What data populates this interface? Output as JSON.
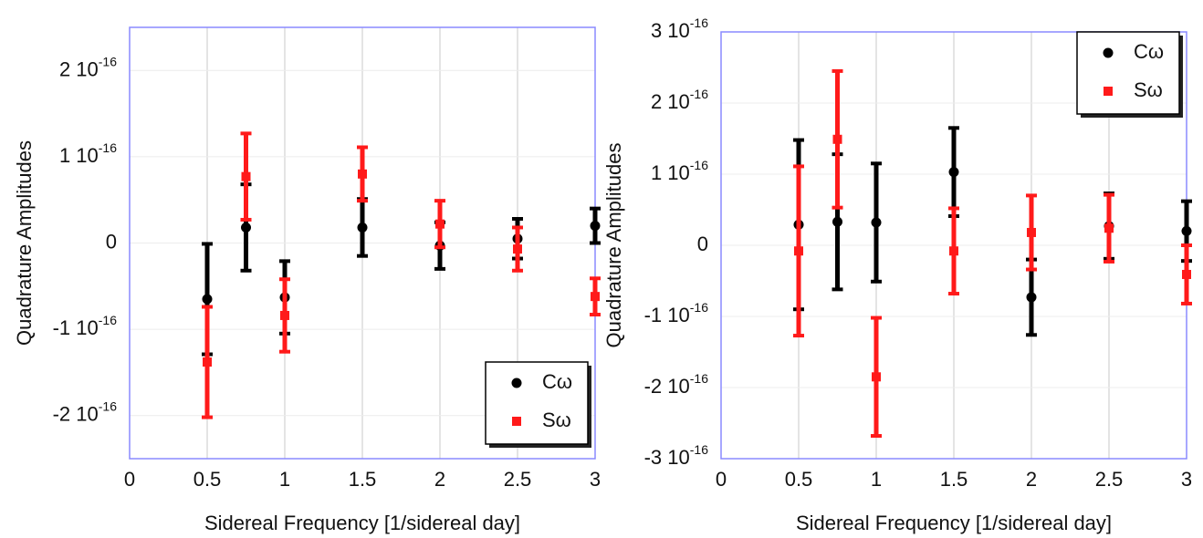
{
  "chart_data": [
    {
      "type": "errorbar",
      "xlabel": "Sidereal Frequency [1/sidereal day]",
      "ylabel": "Quadrature Amplitudes",
      "xlim": [
        0,
        3
      ],
      "xticks": [
        0,
        0.5,
        1,
        1.5,
        2,
        2.5,
        3
      ],
      "ylim": [
        -2.5e-16,
        2.5e-16
      ],
      "yticks": [
        {
          "value": -2e-16,
          "label": "-2 10",
          "exponent": "-16"
        },
        {
          "value": -1e-16,
          "label": "-1 10",
          "exponent": "-16"
        },
        0,
        {
          "value": 1e-16,
          "label": "1 10",
          "exponent": "-16"
        },
        {
          "value": 2e-16,
          "label": "2 10",
          "exponent": "-16"
        }
      ],
      "grid": true,
      "legend": "lower right",
      "series": [
        {
          "name": "Cω",
          "color": "#000000",
          "marker": "circle",
          "x": [
            0.5,
            0.75,
            1,
            1.5,
            2,
            2.5,
            3
          ],
          "values": [
            -6.5e-17,
            1.8e-17,
            -6.3e-17,
            1.8e-17,
            -3e-18,
            5e-18,
            2e-17
          ],
          "errors": [
            6.4e-17,
            5e-17,
            4.2e-17,
            3.3e-17,
            2.7e-17,
            2.3e-17,
            2e-17
          ]
        },
        {
          "name": "Sω",
          "color": "#ff1a1a",
          "marker": "square",
          "x": [
            0.5,
            0.75,
            1,
            1.5,
            2,
            2.5,
            3
          ],
          "values": [
            -1.38e-16,
            7.7e-17,
            -8.4e-17,
            8e-17,
            2.2e-17,
            -7e-18,
            -6.2e-17
          ],
          "errors": [
            6.4e-17,
            5e-17,
            4.2e-17,
            3.1e-17,
            2.7e-17,
            2.5e-17,
            2.1e-17
          ]
        }
      ]
    },
    {
      "type": "errorbar",
      "xlabel": "Sidereal Frequency [1/sidereal day]",
      "ylabel": "Quadrature Amplitudes",
      "xlim": [
        0,
        3
      ],
      "xticks": [
        0,
        0.5,
        1,
        1.5,
        2,
        2.5,
        3
      ],
      "ylim": [
        -3e-16,
        3e-16
      ],
      "yticks": [
        {
          "value": -3e-16,
          "label": "-3 10",
          "exponent": "-16"
        },
        {
          "value": -2e-16,
          "label": "-2 10",
          "exponent": "-16"
        },
        {
          "value": -1e-16,
          "label": "-1 10",
          "exponent": "-16"
        },
        0,
        {
          "value": 1e-16,
          "label": "1 10",
          "exponent": "-16"
        },
        {
          "value": 2e-16,
          "label": "2 10",
          "exponent": "-16"
        },
        {
          "value": 3e-16,
          "label": "3 10",
          "exponent": "-16"
        }
      ],
      "grid": true,
      "legend": "upper right",
      "series": [
        {
          "name": "Cω",
          "color": "#000000",
          "marker": "circle",
          "x": [
            0.5,
            0.75,
            1,
            1.5,
            2,
            2.5,
            3
          ],
          "values": [
            2.9e-17,
            3.3e-17,
            3.2e-17,
            1.03e-16,
            -7.3e-17,
            2.7e-17,
            2e-17
          ],
          "errors": [
            1.19e-16,
            9.5e-17,
            8.3e-17,
            6.2e-17,
            5.3e-17,
            4.6e-17,
            4.2e-17
          ]
        },
        {
          "name": "Sω",
          "color": "#ff1a1a",
          "marker": "square",
          "x": [
            0.5,
            0.75,
            1,
            1.5,
            2,
            2.5,
            3
          ],
          "values": [
            -8e-18,
            1.49e-16,
            -1.85e-16,
            -8e-18,
            1.8e-17,
            2.4e-17,
            -4.1e-17
          ],
          "errors": [
            1.19e-16,
            9.6e-17,
            8.3e-17,
            6e-17,
            5.2e-17,
            4.7e-17,
            4.1e-17
          ]
        }
      ]
    }
  ]
}
